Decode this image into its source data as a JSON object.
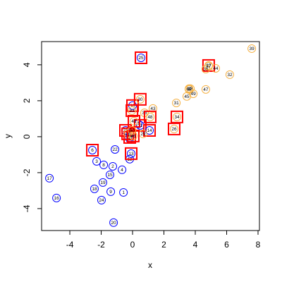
{
  "chart_data": {
    "type": "scatter",
    "xlabel": "x",
    "ylabel": "y",
    "xlim": [
      -5.8,
      8.09
    ],
    "ylim": [
      -5.22,
      5.29
    ],
    "xticks": [
      -4,
      -2,
      0,
      2,
      4,
      6,
      8
    ],
    "yticks": [
      -4,
      -2,
      0,
      2,
      4
    ],
    "box_color": "#ff0000",
    "series": [
      {
        "color": "#0000ff",
        "labels": [
          "1",
          "2",
          "3",
          "4",
          "5",
          "6",
          "7",
          "8",
          "9",
          "10",
          "11",
          "12",
          "13",
          "14",
          "15",
          "16",
          "17",
          "18",
          "19",
          "20",
          "21",
          "22",
          "23",
          "24",
          "25"
        ],
        "x": [
          -0.58,
          -1.26,
          -2.29,
          -0.67,
          -0.18,
          -2.56,
          0.36,
          -1.84,
          -1.39,
          0,
          0.49,
          -0.18,
          -0.09,
          1.08,
          -1.44,
          -4.85,
          -5.3,
          -2.43,
          -1.89,
          -1.21,
          -0.45,
          -1.12,
          -0.18,
          -1.98,
          0.54
        ],
        "values": [
          -3.1,
          -1.65,
          -1.37,
          -1.84,
          -0.12,
          -0.75,
          0.71,
          -1.57,
          -3.06,
          1.73,
          0.63,
          -1.25,
          -0.94,
          0.35,
          -2.12,
          -3.41,
          -2.31,
          -2.9,
          -2.55,
          -4.78,
          0.35,
          -0.71,
          -0.04,
          -3.53,
          4.39
        ],
        "boxed": [
          false,
          false,
          false,
          false,
          false,
          true,
          false,
          false,
          false,
          true,
          true,
          false,
          true,
          true,
          false,
          false,
          false,
          false,
          false,
          false,
          true,
          false,
          true,
          false,
          true
        ]
      },
      {
        "color": "#f5b041",
        "labels": [
          "26",
          "27",
          "28",
          "29",
          "30",
          "31",
          "32",
          "33",
          "34",
          "35",
          "36",
          "37",
          "38",
          "39",
          "40",
          "41",
          "42",
          "43",
          "44",
          "45",
          "46",
          "47",
          "48",
          "49",
          "50"
        ],
        "x": [
          2.65,
          4.85,
          3.6,
          0.67,
          0.49,
          2.79,
          6.2,
          -0.04,
          2.83,
          0.76,
          4.67,
          4.85,
          3.69,
          7.6,
          3.6,
          0.09,
          -0.31,
          1.3,
          5.3,
          3.46,
          0.04,
          4.67,
          1.12,
          3.87,
          -0.04
        ],
        "values": [
          0.43,
          3.96,
          2.63,
          0.16,
          2.08,
          1.88,
          3.45,
          1.45,
          1.1,
          1.33,
          3.76,
          3.92,
          2.67,
          4.9,
          2.67,
          0.86,
          0.16,
          1.57,
          3.8,
          2.24,
          0.04,
          2.63,
          1.1,
          2.39,
          0.35
        ],
        "boxed": [
          true,
          true,
          false,
          false,
          true,
          false,
          false,
          true,
          true,
          false,
          false,
          false,
          false,
          false,
          false,
          true,
          true,
          false,
          false,
          false,
          true,
          false,
          true,
          false,
          false
        ]
      }
    ]
  }
}
